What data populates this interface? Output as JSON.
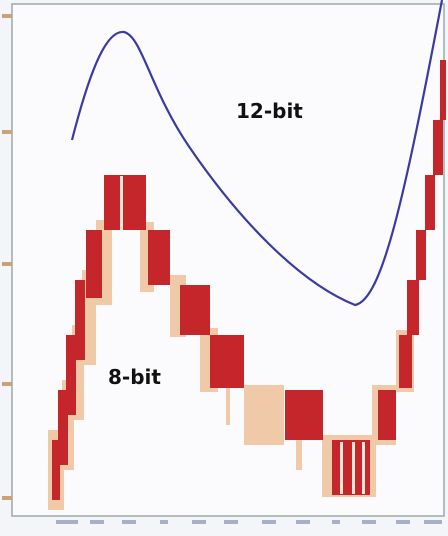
{
  "labels": [
    "12-bit",
    "8-bit"
  ]
}
